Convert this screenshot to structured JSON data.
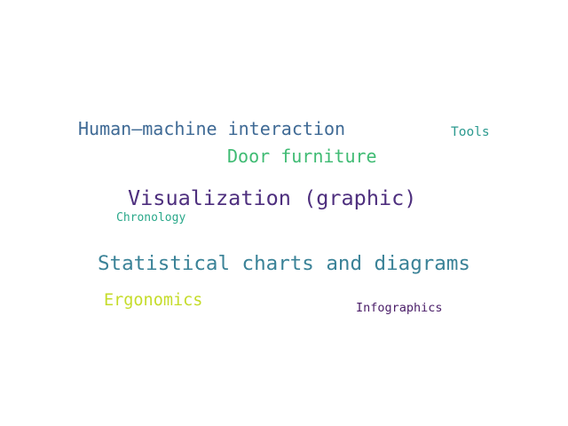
{
  "word_cloud": {
    "background_color": "#ffffff",
    "words": [
      {
        "id": "hmi",
        "text": "Human–machine interaction",
        "color": "#3f6a95"
      },
      {
        "id": "tools",
        "text": "Tools",
        "color": "#2c9a8f"
      },
      {
        "id": "door",
        "text": "Door furniture",
        "color": "#3fbb73"
      },
      {
        "id": "viz",
        "text": "Visualization (graphic)",
        "color": "#4e2f7e"
      },
      {
        "id": "chron",
        "text": "Chronology",
        "color": "#2aa88a"
      },
      {
        "id": "stat",
        "text": "Statistical charts and diagrams",
        "color": "#3a8297"
      },
      {
        "id": "ergo",
        "text": "Ergonomics",
        "color": "#c5dc2a"
      },
      {
        "id": "info",
        "text": "Infographics",
        "color": "#4a1d68"
      }
    ]
  }
}
